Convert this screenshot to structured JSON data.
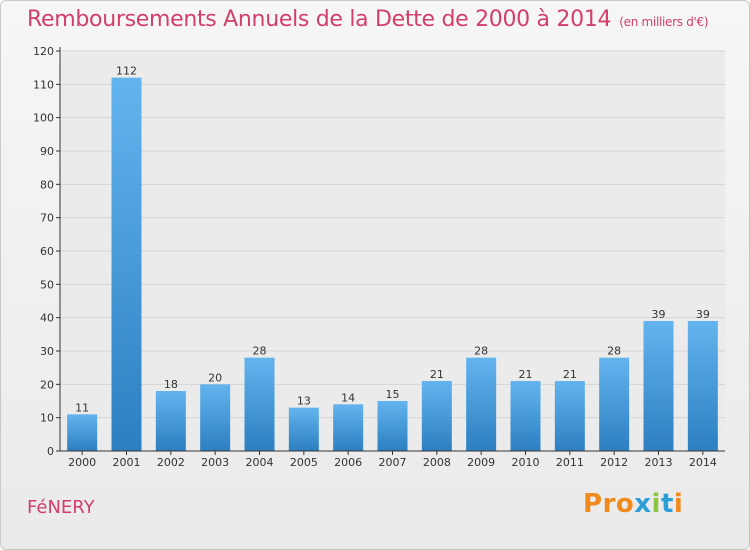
{
  "header": {
    "title": "Remboursements Annuels de la Dette de 2000 à 2014",
    "subtitle": "(en milliers d'€)"
  },
  "footer": {
    "city": "FéNERY",
    "logo": [
      "P",
      "r",
      "o",
      "x",
      "i",
      "t",
      "i"
    ]
  },
  "colors": {
    "title": "#d2406a",
    "bar_top": "#63b4ee",
    "bar_bottom": "#2c7fc1",
    "axis": "#333333",
    "grid": "#d4d4d4",
    "logo": [
      "#f08a1c",
      "#f08a1c",
      "#f08a1c",
      "#2a9fd8",
      "#8cc63f",
      "#2a9fd8",
      "#f08a1c"
    ]
  },
  "chart_data": {
    "type": "bar",
    "categories": [
      "2000",
      "2001",
      "2002",
      "2003",
      "2004",
      "2005",
      "2006",
      "2007",
      "2008",
      "2009",
      "2010",
      "2011",
      "2012",
      "2013",
      "2014"
    ],
    "values": [
      11,
      112,
      18,
      20,
      28,
      13,
      14,
      15,
      21,
      28,
      21,
      21,
      28,
      39,
      39
    ],
    "title": "Remboursements Annuels de la Dette de 2000 à 2014",
    "subtitle": "(en milliers d'€)",
    "xlabel": "",
    "ylabel": "",
    "ylim": [
      0,
      120
    ],
    "yticks": [
      0,
      10,
      20,
      30,
      40,
      50,
      60,
      70,
      80,
      90,
      100,
      110,
      120
    ],
    "grid": true,
    "data_labels": true
  }
}
